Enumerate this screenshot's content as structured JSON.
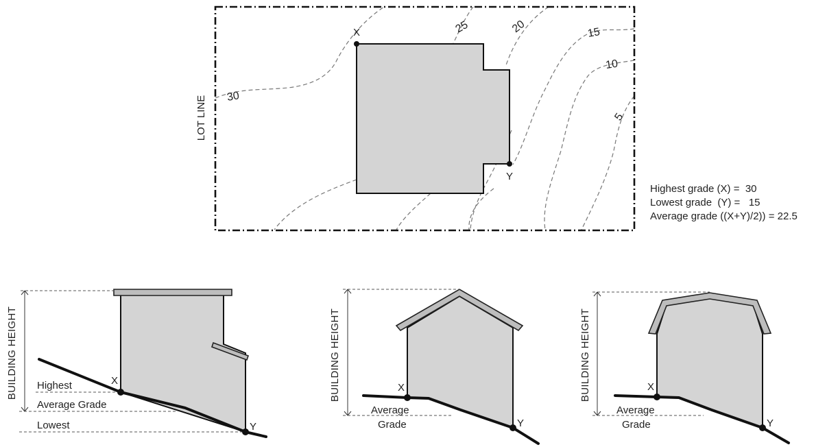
{
  "plan": {
    "lot_line_label": "LOT LINE",
    "contours": [
      "30",
      "25",
      "20",
      "15",
      "10",
      "5"
    ],
    "point_x_label": "X",
    "point_y_label": "Y"
  },
  "summary": {
    "highest": "Highest grade (X) =  30",
    "lowest": "Lowest grade  (Y) =   15",
    "average": "Average grade ((X+Y)/2)) = 22.5"
  },
  "sections": {
    "building_height_label": "BUILDING HEIGHT",
    "flat": {
      "highest_label": "Highest",
      "average_label": "Average Grade",
      "lowest_label": "Lowest",
      "x_label": "X",
      "y_label": "Y"
    },
    "gable": {
      "average_label": "Average",
      "grade_label": "Grade",
      "x_label": "X",
      "y_label": "Y"
    },
    "gambrel": {
      "average_label": "Average",
      "grade_label": "Grade",
      "x_label": "X",
      "y_label": "Y"
    }
  },
  "colors": {
    "building_fill": "#d4d4d4",
    "roof_fill": "#bdbdbd",
    "line": "#111111",
    "contour": "#777777"
  }
}
